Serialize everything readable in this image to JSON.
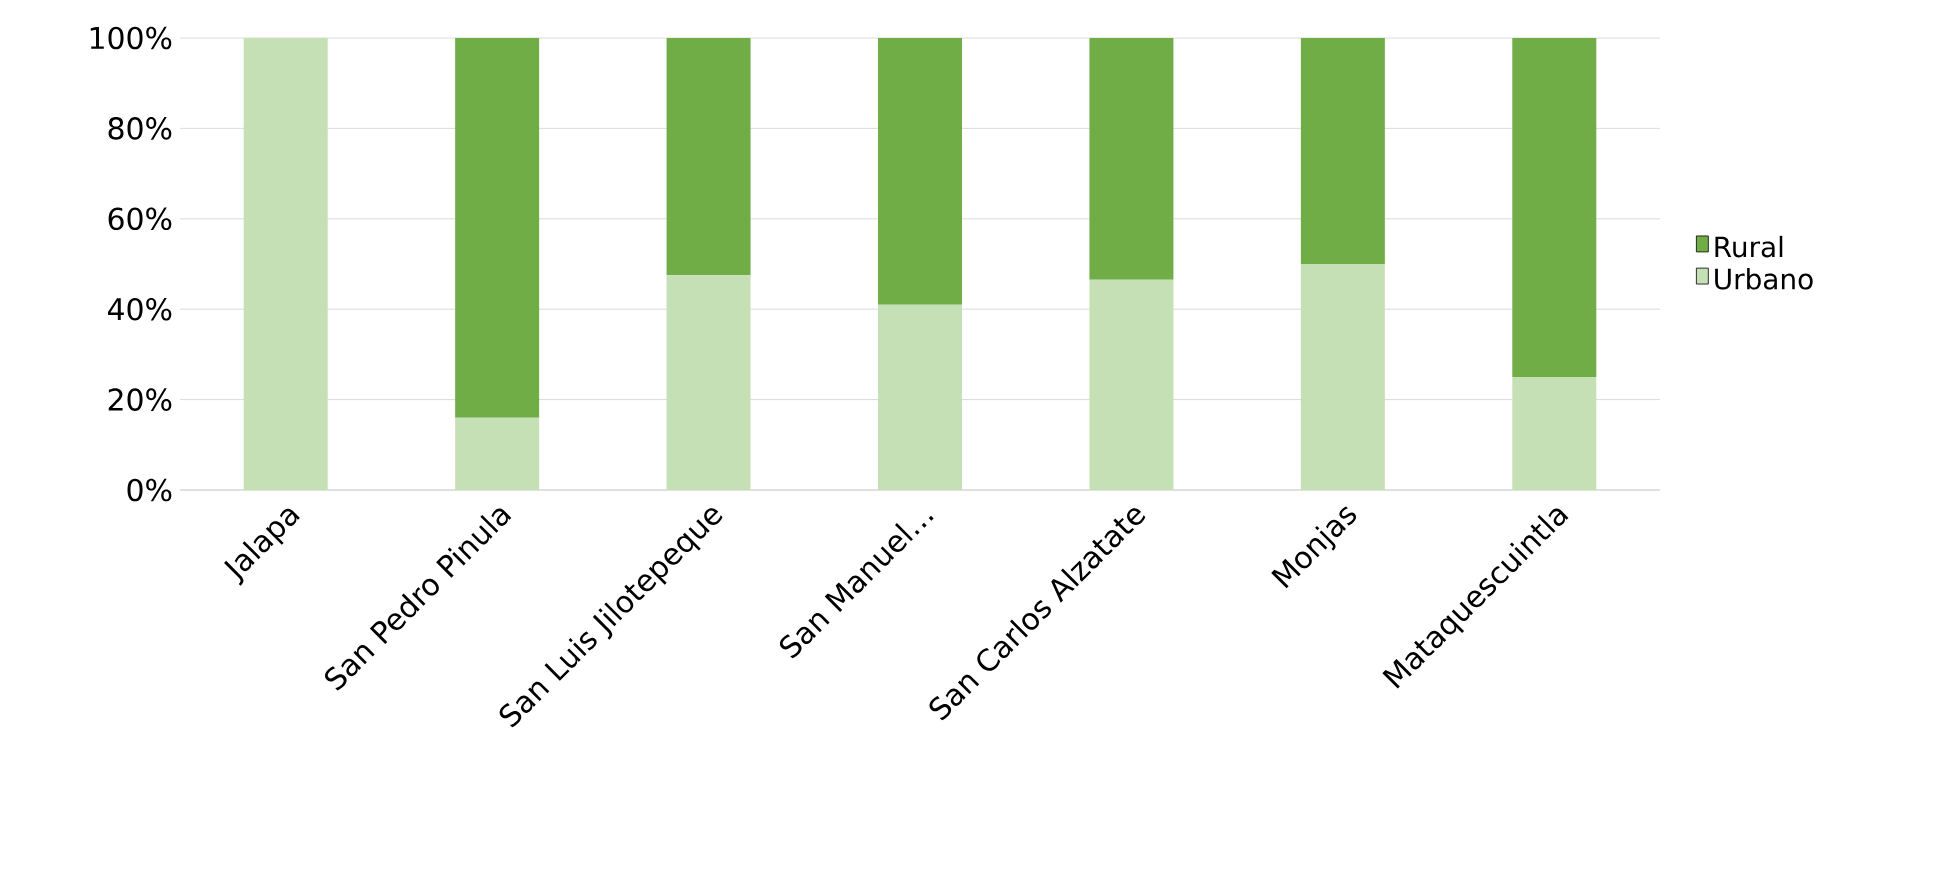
{
  "chart_data": {
    "type": "bar",
    "stacked": true,
    "categories": [
      "Jalapa",
      "San Pedro Pinula",
      "San Luis Jilotepeque",
      "San Manuel…",
      "San Carlos Alzatate",
      "Monjas",
      "Mataquescuintla"
    ],
    "series": [
      {
        "name": "Urbano",
        "color": "#c5e0b4",
        "values": [
          100,
          16,
          47.5,
          41,
          46.5,
          50,
          25
        ]
      },
      {
        "name": "Rural",
        "color": "#70ad47",
        "values": [
          0,
          84,
          52.5,
          59,
          53.5,
          50,
          75
        ]
      }
    ],
    "ylim": [
      0,
      100
    ],
    "yticks": [
      {
        "value": 0,
        "label": "0%"
      },
      {
        "value": 20,
        "label": "20%"
      },
      {
        "value": 40,
        "label": "40%"
      },
      {
        "value": 60,
        "label": "60%"
      },
      {
        "value": 80,
        "label": "80%"
      },
      {
        "value": 100,
        "label": "100%"
      }
    ],
    "grid": "y",
    "legend": "right"
  }
}
